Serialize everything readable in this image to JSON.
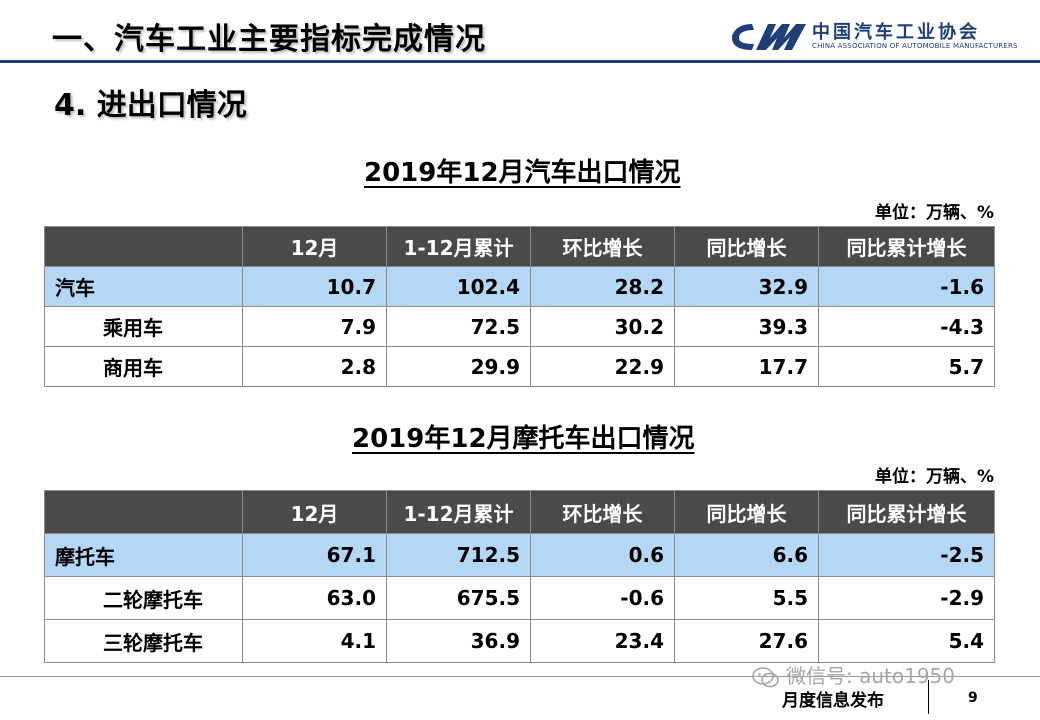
{
  "header": {
    "title": "一、汽车工业主要指标完成情况",
    "logo_cn": "中国汽车工业协会",
    "logo_en": "CHINA ASSOCIATION OF AUTOMOBILE MANUFACTURERS",
    "logo_icon": "caam-logo-icon"
  },
  "section_title": "4. 进出口情况",
  "auto_table": {
    "title": "2019年12月汽车出口情况",
    "unit": "单位：万辆、%",
    "columns": [
      "",
      "12月",
      "1-12月累计",
      "环比增长",
      "同比增长",
      "同比累计增长"
    ],
    "rows": [
      {
        "label": "汽车",
        "values": [
          "10.7",
          "102.4",
          "28.2",
          "32.9",
          "-1.6"
        ]
      },
      {
        "label": "乘用车",
        "values": [
          "7.9",
          "72.5",
          "30.2",
          "39.3",
          "-4.3"
        ]
      },
      {
        "label": "商用车",
        "values": [
          "2.8",
          "29.9",
          "22.9",
          "17.7",
          "5.7"
        ]
      }
    ]
  },
  "moto_table": {
    "title": "2019年12月摩托车出口情况",
    "unit": "单位：万辆、%",
    "columns": [
      "",
      "12月",
      "1-12月累计",
      "环比增长",
      "同比增长",
      "同比累计增长"
    ],
    "rows": [
      {
        "label": "摩托车",
        "values": [
          "67.1",
          "712.5",
          "0.6",
          "6.6",
          "-2.5"
        ]
      },
      {
        "label": "二轮摩托车",
        "values": [
          "63.0",
          "675.5",
          "-0.6",
          "5.5",
          "-2.9"
        ]
      },
      {
        "label": "三轮摩托车",
        "values": [
          "4.1",
          "36.9",
          "23.4",
          "27.6",
          "5.4"
        ]
      }
    ]
  },
  "footer": {
    "text": "月度信息发布",
    "page": "9",
    "watermark": "微信号: auto1950",
    "watermark_icon": "wechat-icon"
  },
  "colors": {
    "header_rule": "#1f3e7a",
    "table_header_bg": "#4a4a4a",
    "highlight_row": "#b4d7f5"
  }
}
